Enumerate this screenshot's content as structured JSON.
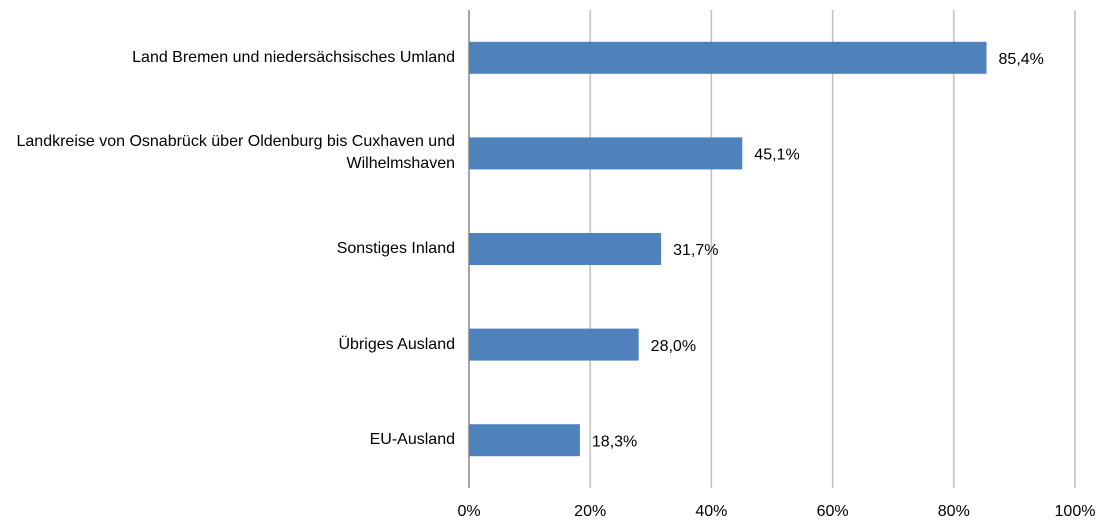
{
  "chart_data": {
    "type": "bar",
    "orientation": "horizontal",
    "categories": [
      "Land Bremen und niedersächsisches Umland",
      "Landkreise von Osnabrück über Oldenburg bis Cuxhaven und Wilhelmshaven",
      "Sonstiges Inland",
      "Übriges Ausland",
      "EU-Ausland"
    ],
    "values": [
      85.4,
      45.1,
      31.7,
      28.0,
      18.3
    ],
    "value_labels": [
      "85,4%",
      "45,1%",
      "31,7%",
      "28,0%",
      "18,3%"
    ],
    "color": "#4f81bd",
    "xlim": [
      0,
      100
    ],
    "xticks": [
      {
        "value": 0,
        "label": "0%"
      },
      {
        "value": 20,
        "label": "20%"
      },
      {
        "value": 40,
        "label": "40%"
      },
      {
        "value": 60,
        "label": "60%"
      },
      {
        "value": 80,
        "label": "80%"
      },
      {
        "value": 100,
        "label": "100%"
      }
    ],
    "grid": true
  }
}
